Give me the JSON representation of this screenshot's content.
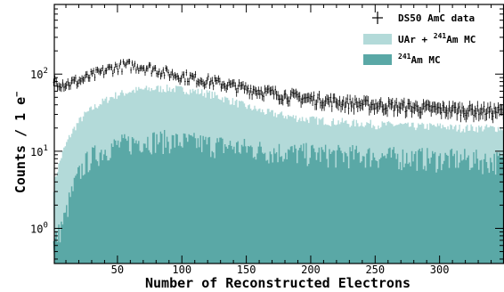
{
  "chart_data": {
    "type": "histogram",
    "xlabel": "Number of Reconstructed Electrons",
    "ylabel_main": "Counts / 1 e",
    "ylabel_sup": "−",
    "xlim": [
      1,
      350
    ],
    "ylim": [
      0.35,
      800
    ],
    "yscale": "log",
    "x_ticks": [
      50,
      100,
      150,
      200,
      250,
      300
    ],
    "y_ticks": [
      {
        "value": 1,
        "base": "10",
        "exp": "0"
      },
      {
        "value": 10,
        "base": "10",
        "exp": "1"
      },
      {
        "value": 100,
        "base": "10",
        "exp": "2"
      }
    ],
    "legend_position": "top-right",
    "legend": [
      {
        "kind": "errorbar",
        "label": "DS50 AmC data",
        "pre": "",
        "sup": "",
        "post": ""
      },
      {
        "kind": "box",
        "color": "#b3dad9",
        "label": "",
        "pre": "UAr + ",
        "sup": "241",
        "post": "Am MC"
      },
      {
        "kind": "box",
        "color": "#5aa8a6",
        "label": "",
        "pre": "",
        "sup": "241",
        "post": "Am MC"
      }
    ],
    "series": [
      {
        "name": "UAr + 241Am MC",
        "type": "filled-histogram",
        "color": "#b3dad9",
        "x": [
          0,
          5,
          10,
          15,
          20,
          25,
          30,
          35,
          40,
          45,
          50,
          55,
          60,
          65,
          70,
          75,
          80,
          85,
          90,
          95,
          100,
          105,
          110,
          115,
          120,
          125,
          130,
          135,
          140,
          145,
          150,
          155,
          160,
          165,
          170,
          175,
          180,
          185,
          190,
          195,
          200,
          205,
          210,
          215,
          220,
          225,
          230,
          235,
          240,
          245,
          250,
          255,
          260,
          265,
          270,
          275,
          280,
          285,
          290,
          295,
          300,
          305,
          310,
          315,
          320,
          325,
          330,
          335,
          340,
          345,
          350
        ],
        "y": [
          3,
          7,
          12,
          18,
          24,
          30,
          35,
          40,
          45,
          50,
          54,
          57,
          60,
          62,
          63,
          64,
          65,
          65,
          65,
          64,
          63,
          62,
          60,
          58,
          56,
          53,
          50,
          47,
          44,
          41,
          38,
          36,
          34,
          32,
          31,
          30,
          29,
          28,
          27,
          26,
          26,
          25,
          25,
          24,
          24,
          24,
          23,
          23,
          23,
          23,
          22,
          22,
          22,
          22,
          22,
          21,
          21,
          21,
          21,
          21,
          21,
          21,
          20,
          20,
          20,
          20,
          20,
          20,
          20,
          20,
          20
        ]
      },
      {
        "name": "241Am MC",
        "type": "filled-histogram",
        "color": "#5aa8a6",
        "x": [
          0,
          5,
          10,
          15,
          20,
          25,
          30,
          35,
          40,
          45,
          50,
          55,
          60,
          65,
          70,
          75,
          80,
          85,
          90,
          95,
          100,
          110,
          120,
          130,
          140,
          150,
          160,
          170,
          180,
          190,
          200,
          220,
          240,
          260,
          280,
          300,
          320,
          340,
          350
        ],
        "y": [
          0.6,
          0.9,
          1.5,
          3,
          5,
          7,
          8.5,
          9.5,
          10.5,
          11.5,
          12,
          12.5,
          13,
          13.5,
          14,
          14,
          14,
          14,
          14,
          13.5,
          13.5,
          13,
          12.5,
          12,
          11.5,
          11,
          10.5,
          10,
          10,
          9.5,
          9.5,
          9,
          9,
          8.5,
          8.5,
          8,
          8,
          7.5,
          7.5
        ]
      },
      {
        "name": "DS50 AmC data",
        "type": "errorbar",
        "color": "#000000",
        "x": [
          0,
          5,
          10,
          15,
          20,
          25,
          30,
          35,
          40,
          45,
          50,
          55,
          60,
          65,
          70,
          75,
          80,
          85,
          90,
          95,
          100,
          110,
          120,
          130,
          140,
          150,
          160,
          170,
          180,
          190,
          200,
          210,
          220,
          230,
          240,
          250,
          260,
          270,
          280,
          290,
          300,
          310,
          320,
          330,
          340,
          350
        ],
        "y": [
          85,
          78,
          75,
          78,
          82,
          88,
          95,
          102,
          110,
          118,
          125,
          128,
          130,
          128,
          125,
          120,
          115,
          108,
          102,
          98,
          95,
          88,
          82,
          76,
          70,
          65,
          61,
          57,
          53,
          50,
          48,
          46,
          44,
          42,
          41,
          40,
          39,
          38,
          37,
          36,
          35,
          35,
          34,
          34,
          33,
          33
        ]
      }
    ]
  }
}
